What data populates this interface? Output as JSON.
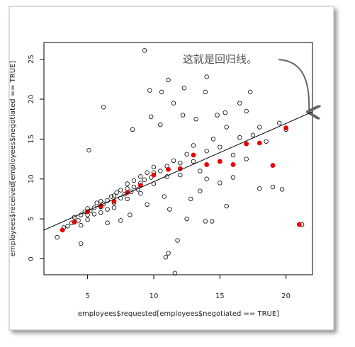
{
  "chart_data": {
    "type": "scatter",
    "x_label": "employees$requested[employees$negotiated == TRUE]",
    "y_label": "employees$received[employees$negotiated == TRUE]",
    "annotation": "这就是回归线。",
    "xlim": [
      1.7,
      22
    ],
    "ylim": [
      -2,
      27.1
    ],
    "xticks": [
      5,
      10,
      15,
      20
    ],
    "yticks": [
      0,
      5,
      10,
      15,
      20,
      25
    ],
    "series": [
      {
        "color": "#000000",
        "marker": "open-circle",
        "x": [
          3.2,
          3.5,
          3.8,
          4.0,
          4.0,
          4.3,
          4.5,
          4.5,
          4.8,
          5.0,
          5.0,
          5.0,
          5.2,
          5.5,
          5.5,
          5.7,
          6.0,
          6.0,
          6.0,
          6.2,
          6.5,
          6.5,
          6.8,
          7.0,
          7.0,
          7.0,
          7.2,
          7.5,
          7.5,
          7.8,
          8.0,
          8.0,
          8.0,
          8.3,
          8.5,
          8.5,
          8.8,
          9.0,
          9.0,
          9.0,
          9.3,
          9.5,
          9.8,
          10.0,
          10.0,
          10.0,
          10.5,
          11.0,
          11.0,
          11.5,
          12.0,
          12.0,
          12.5,
          13.0,
          13.0,
          13.5,
          14.0,
          14.0,
          14.5,
          15.0,
          15.0,
          15.5,
          16.0,
          16.0,
          16.5,
          17.0,
          17.0,
          17.5,
          18.0,
          18.0,
          18.5,
          19.0,
          19.5,
          20.0,
          13.2,
          12.2,
          11.5,
          10.5,
          9.8,
          12.8,
          11.2,
          12.5,
          10.8,
          9.5,
          13.5,
          14.8,
          16.5,
          8.2,
          7.5,
          6.5,
          5.1,
          9.3,
          8.4,
          6.2,
          9.7,
          11.1,
          14.0,
          13.9,
          17.3,
          10.9,
          11.6,
          11.1,
          21.2,
          19.7,
          15.5,
          13.9,
          14.4,
          11.8,
          4.5,
          2.7,
          15.4,
          12.3,
          10.6
        ],
        "values": [
          3.9,
          4.1,
          4.5,
          4.6,
          5.2,
          4.8,
          5.5,
          4.2,
          5.9,
          5.5,
          6.3,
          4.9,
          6.0,
          6.4,
          5.6,
          7.0,
          6.5,
          7.2,
          5.8,
          6.9,
          7.3,
          6.2,
          7.8,
          7.0,
          7.9,
          6.4,
          8.3,
          7.6,
          8.6,
          8.1,
          8.8,
          7.5,
          9.4,
          8.4,
          9.0,
          9.8,
          8.7,
          9.5,
          10.3,
          8.2,
          9.9,
          10.8,
          10.2,
          10.8,
          11.5,
          9.4,
          11.0,
          11.6,
          10.3,
          12.3,
          12.0,
          10.5,
          13.1,
          12.2,
          14.2,
          11.0,
          13.5,
          10.0,
          15.0,
          14.0,
          9.5,
          16.5,
          13.0,
          10.2,
          15.2,
          12.5,
          18.5,
          15.5,
          16.5,
          8.8,
          14.7,
          9.0,
          17.0,
          16.2,
          17.5,
          18.0,
          19.5,
          16.8,
          17.8,
          7.5,
          6.2,
          5.0,
          7.8,
          6.8,
          8.5,
          18.0,
          19.5,
          5.5,
          4.8,
          4.5,
          13.6,
          26.1,
          16.2,
          19.0,
          21.1,
          22.4,
          22.8,
          20.9,
          20.9,
          0.2,
          -1.8,
          0.7,
          4.3,
          8.7,
          6.6,
          4.7,
          4.7,
          2.3,
          1.9,
          2.7,
          18.3,
          21.4,
          20.9
        ]
      },
      {
        "color": "#ee0000",
        "marker": "filled-circle",
        "x": [
          3.1,
          4.0,
          5,
          6,
          7,
          8,
          9,
          10,
          11.1,
          12,
          13,
          14,
          15,
          16,
          17,
          18,
          19,
          20,
          21
        ],
        "values": [
          3.6,
          4.6,
          5.9,
          6.6,
          7.2,
          8.3,
          9.2,
          10.5,
          11.2,
          11.3,
          13.0,
          11.8,
          12.2,
          11.8,
          14.4,
          14.5,
          11.7,
          16.4,
          4.3
        ]
      }
    ],
    "regression": {
      "intercept": 2.36,
      "slope": 0.73
    }
  }
}
